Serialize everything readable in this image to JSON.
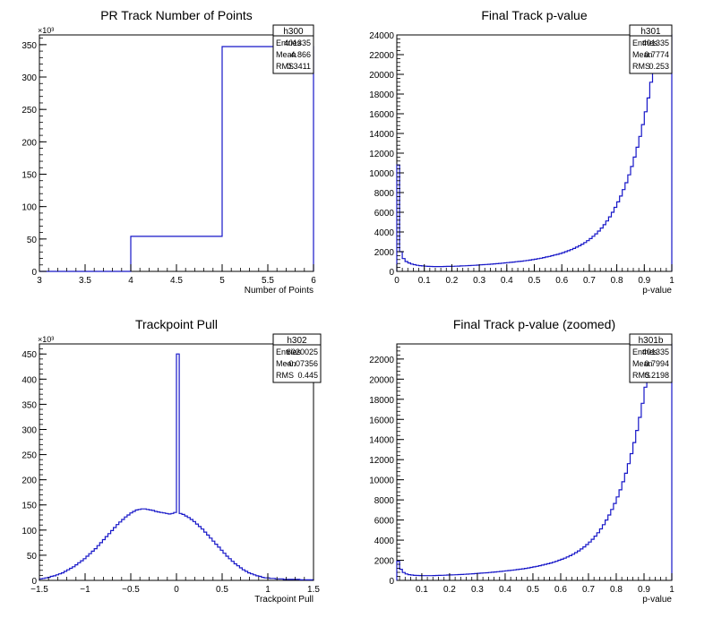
{
  "charts": [
    {
      "id": "h300",
      "title": "PR Track Number of Points",
      "xlabel": "Number of Points",
      "exponent_label": "×10³",
      "stats": {
        "name": "h300",
        "rows": [
          [
            "Entries",
            "401335"
          ],
          [
            "Mean",
            "4.866"
          ],
          [
            "RMS",
            "0.3411"
          ]
        ]
      },
      "xticks": [
        "3",
        "3.5",
        "4",
        "4.5",
        "5",
        "5.5",
        "6"
      ],
      "yticks": [
        "0",
        "50",
        "100",
        "150",
        "200",
        "250",
        "300",
        "350"
      ]
    },
    {
      "id": "h301",
      "title": "Final Track p-value",
      "xlabel": "p-value",
      "exponent_label": "",
      "stats": {
        "name": "h301",
        "rows": [
          [
            "Entries",
            "401335"
          ],
          [
            "Mean",
            "0.7774"
          ],
          [
            "RMS",
            "0.253"
          ]
        ]
      },
      "xticks": [
        "0",
        "0.1",
        "0.2",
        "0.3",
        "0.4",
        "0.5",
        "0.6",
        "0.7",
        "0.8",
        "0.9",
        "1"
      ],
      "yticks": [
        "0",
        "2000",
        "4000",
        "6000",
        "8000",
        "10000",
        "12000",
        "14000",
        "16000",
        "18000",
        "20000",
        "22000",
        "24000"
      ]
    },
    {
      "id": "h302",
      "title": "Trackpoint Pull",
      "xlabel": "Trackpoint Pull",
      "exponent_label": "×10³",
      "stats": {
        "name": "h302",
        "rows": [
          [
            "Entries",
            "6020025"
          ],
          [
            "Mean",
            "−0.07356"
          ],
          [
            "RMS",
            "0.445"
          ]
        ]
      },
      "xticks": [
        "−1.5",
        "−1",
        "−0.5",
        "0",
        "0.5",
        "1",
        "1.5"
      ],
      "yticks": [
        "0",
        "50",
        "100",
        "150",
        "200",
        "250",
        "300",
        "350",
        "400",
        "450"
      ]
    },
    {
      "id": "h301b",
      "title": "Final Track p-value (zoomed)",
      "xlabel": "p-value",
      "exponent_label": "",
      "stats": {
        "name": "h301b",
        "rows": [
          [
            "Entries",
            "401335"
          ],
          [
            "Mean",
            "0.7994"
          ],
          [
            "RMS",
            "0.2198"
          ]
        ]
      },
      "xticks": [
        "0.1",
        "0.2",
        "0.3",
        "0.4",
        "0.5",
        "0.6",
        "0.7",
        "0.8",
        "0.9",
        "1"
      ],
      "yticks": [
        "0",
        "2000",
        "4000",
        "6000",
        "8000",
        "10000",
        "12000",
        "14000",
        "16000",
        "18000",
        "20000",
        "22000"
      ]
    }
  ],
  "chart_data": [
    {
      "type": "histogram",
      "title": "PR Track Number of Points",
      "xlabel": "Number of Points",
      "ylabel": "",
      "xlim": [
        3,
        6
      ],
      "ylim": [
        0,
        365
      ],
      "y_units": "×10³",
      "bins": [
        [
          3,
          4,
          0
        ],
        [
          4,
          5,
          54
        ],
        [
          5,
          6,
          347
        ]
      ],
      "grid": false,
      "legend": "top-right"
    },
    {
      "type": "histogram",
      "title": "Final Track p-value",
      "xlabel": "p-value",
      "ylabel": "",
      "xlim": [
        0,
        1
      ],
      "ylim": [
        0,
        24000
      ],
      "bin_width": 0.01,
      "values": [
        10800,
        2000,
        1300,
        1000,
        850,
        750,
        680,
        620,
        580,
        550,
        530,
        510,
        500,
        490,
        490,
        490,
        495,
        500,
        505,
        510,
        520,
        530,
        540,
        550,
        560,
        575,
        590,
        605,
        620,
        640,
        660,
        680,
        700,
        720,
        740,
        760,
        785,
        810,
        835,
        860,
        890,
        920,
        950,
        980,
        1010,
        1040,
        1075,
        1110,
        1150,
        1190,
        1240,
        1290,
        1340,
        1400,
        1460,
        1520,
        1590,
        1660,
        1730,
        1810,
        1900,
        2000,
        2100,
        2210,
        2330,
        2460,
        2600,
        2760,
        2930,
        3120,
        3330,
        3560,
        3810,
        4090,
        4400,
        4740,
        5120,
        5540,
        6000,
        6500,
        7050,
        7650,
        8300,
        9000,
        9800,
        10650,
        11600,
        12600,
        13700,
        14900,
        16200,
        17600,
        19200,
        21000,
        23500,
        24000,
        24000,
        24000,
        24000,
        24000
      ],
      "grid": false,
      "legend": "top-right"
    },
    {
      "type": "histogram",
      "title": "Trackpoint Pull",
      "xlabel": "Trackpoint Pull",
      "ylabel": "",
      "xlim": [
        -1.5,
        1.5
      ],
      "ylim": [
        0,
        470
      ],
      "y_units": "×10³",
      "bin_width": 0.03,
      "values": [
        3,
        4,
        5,
        6,
        8,
        9,
        11,
        13,
        15,
        18,
        21,
        24,
        27,
        31,
        35,
        39,
        43,
        48,
        53,
        58,
        63,
        69,
        75,
        81,
        87,
        93,
        99,
        105,
        111,
        116,
        121,
        126,
        130,
        134,
        137,
        140,
        141,
        142,
        142,
        141,
        140,
        139,
        137,
        136,
        135,
        134,
        133,
        132,
        133,
        135,
        450,
        133,
        131,
        128,
        125,
        121,
        117,
        112,
        107,
        102,
        96,
        90,
        84,
        78,
        72,
        66,
        60,
        54,
        48,
        43,
        38,
        33,
        29,
        25,
        21,
        18,
        15,
        13,
        11,
        9,
        8,
        6,
        5,
        5,
        4,
        4,
        3,
        3,
        3,
        2,
        2,
        2,
        2,
        2,
        2,
        1,
        1,
        1,
        1,
        1
      ],
      "grid": false,
      "legend": "top-right"
    },
    {
      "type": "histogram",
      "title": "Final Track p-value (zoomed)",
      "xlabel": "p-value",
      "ylabel": "",
      "xlim": [
        0.01,
        1
      ],
      "ylim": [
        0,
        23500
      ],
      "bin_width": 0.01,
      "x_start": 0.01,
      "values": [
        1900,
        1100,
        780,
        640,
        570,
        530,
        500,
        490,
        480,
        475,
        470,
        470,
        475,
        480,
        490,
        500,
        510,
        520,
        530,
        540,
        550,
        560,
        575,
        590,
        605,
        620,
        640,
        660,
        680,
        700,
        720,
        740,
        760,
        785,
        810,
        835,
        860,
        890,
        920,
        950,
        980,
        1010,
        1040,
        1075,
        1110,
        1150,
        1190,
        1240,
        1290,
        1340,
        1400,
        1460,
        1520,
        1590,
        1660,
        1730,
        1810,
        1900,
        2000,
        2100,
        2210,
        2330,
        2460,
        2600,
        2760,
        2930,
        3120,
        3330,
        3560,
        3810,
        4090,
        4400,
        4740,
        5120,
        5540,
        6000,
        6500,
        7050,
        7650,
        8300,
        9000,
        9800,
        10650,
        11600,
        12600,
        13700,
        14900,
        16200,
        17600,
        19200,
        20800,
        23500,
        23500,
        23500,
        23500,
        23500,
        23500,
        23500,
        23500
      ],
      "grid": false,
      "legend": "top-right"
    }
  ]
}
